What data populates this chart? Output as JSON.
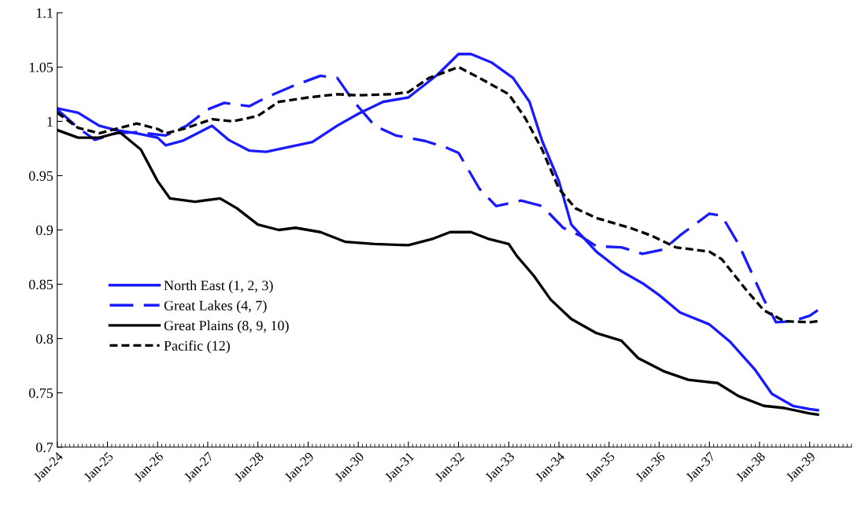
{
  "chart_data": {
    "type": "line",
    "xlim": [
      "1924-01",
      "1939-11"
    ],
    "xticks": [
      {
        "value": "1924-01",
        "label": "Jan-24"
      },
      {
        "value": "1925-01",
        "label": "Jan-25"
      },
      {
        "value": "1926-01",
        "label": "Jan-26"
      },
      {
        "value": "1927-01",
        "label": "Jan-27"
      },
      {
        "value": "1928-01",
        "label": "Jan-28"
      },
      {
        "value": "1929-01",
        "label": "Jan-29"
      },
      {
        "value": "1930-01",
        "label": "Jan-30"
      },
      {
        "value": "1931-01",
        "label": "Jan-31"
      },
      {
        "value": "1932-01",
        "label": "Jan-32"
      },
      {
        "value": "1933-01",
        "label": "Jan-33"
      },
      {
        "value": "1934-01",
        "label": "Jan-34"
      },
      {
        "value": "1935-01",
        "label": "Jan-35"
      },
      {
        "value": "1936-01",
        "label": "Jan-36"
      },
      {
        "value": "1937-01",
        "label": "Jan-37"
      },
      {
        "value": "1938-01",
        "label": "Jan-38"
      },
      {
        "value": "1939-01",
        "label": "Jan-39"
      }
    ],
    "ylim": [
      0.7,
      1.1
    ],
    "yticks": [
      0.7,
      0.75,
      0.8,
      0.85,
      0.9,
      0.95,
      1,
      1.05,
      1.1
    ],
    "grid": false,
    "legend": "left",
    "marker": "none",
    "series": [
      {
        "name": "North East (1, 2, 3)",
        "color": "#1a1aff",
        "line_style": "solid",
        "x": [
          "1924-01",
          "1924-06",
          "1924-11",
          "1925-03",
          "1925-08",
          "1926-01",
          "1926-03",
          "1926-07",
          "1927-02",
          "1927-06",
          "1927-11",
          "1928-03",
          "1929-02",
          "1929-08",
          "1930-01",
          "1930-07",
          "1931-01",
          "1931-08",
          "1932-01",
          "1932-04",
          "1932-09",
          "1933-02",
          "1933-06",
          "1933-09",
          "1934-01",
          "1934-04",
          "1934-10",
          "1935-04",
          "1935-09",
          "1936-01",
          "1936-06",
          "1937-01",
          "1937-06",
          "1937-12",
          "1938-04",
          "1938-09",
          "1939-01",
          "1939-03"
        ],
        "values": [
          1.012,
          1.008,
          0.996,
          0.992,
          0.989,
          0.985,
          0.978,
          0.982,
          0.996,
          0.983,
          0.973,
          0.972,
          0.981,
          0.996,
          1.007,
          1.018,
          1.022,
          1.043,
          1.062,
          1.062,
          1.054,
          1.04,
          1.018,
          0.982,
          0.945,
          0.905,
          0.88,
          0.862,
          0.851,
          0.84,
          0.824,
          0.813,
          0.797,
          0.771,
          0.749,
          0.738,
          0.735,
          0.734
        ]
      },
      {
        "name": "Great Lakes (4, 7)",
        "color": "#1a1aff",
        "line_style": "dashed",
        "x": [
          "1924-01",
          "1924-06",
          "1924-10",
          "1925-03",
          "1925-08",
          "1926-03",
          "1926-08",
          "1927-01",
          "1927-05",
          "1927-11",
          "1928-03",
          "1928-09",
          "1929-04",
          "1929-08",
          "1929-12",
          "1930-05",
          "1930-10",
          "1931-05",
          "1931-10",
          "1932-01",
          "1932-06",
          "1932-10",
          "1933-04",
          "1933-09",
          "1934-02",
          "1934-06",
          "1934-10",
          "1935-04",
          "1935-09",
          "1936-02",
          "1936-06",
          "1937-01",
          "1937-04",
          "1937-08",
          "1938-02",
          "1938-05",
          "1938-09",
          "1939-01",
          "1939-03"
        ],
        "values": [
          1.011,
          0.994,
          0.983,
          0.989,
          0.99,
          0.987,
          0.996,
          1.011,
          1.017,
          1.014,
          1.022,
          1.032,
          1.042,
          1.04,
          1.018,
          0.996,
          0.987,
          0.982,
          0.976,
          0.971,
          0.938,
          0.922,
          0.927,
          0.922,
          0.902,
          0.895,
          0.885,
          0.884,
          0.878,
          0.882,
          0.895,
          0.915,
          0.913,
          0.887,
          0.836,
          0.815,
          0.816,
          0.821,
          0.826
        ]
      },
      {
        "name": "Great Plains (8, 9, 10)",
        "color": "#000000",
        "line_style": "solid",
        "x": [
          "1924-01",
          "1924-06",
          "1924-11",
          "1925-04",
          "1925-09",
          "1926-01",
          "1926-04",
          "1926-10",
          "1927-04",
          "1927-08",
          "1928-01",
          "1928-06",
          "1928-10",
          "1929-04",
          "1929-10",
          "1930-05",
          "1931-01",
          "1931-07",
          "1931-11",
          "1932-04",
          "1932-08",
          "1933-01",
          "1933-03",
          "1933-07",
          "1933-11",
          "1934-04",
          "1934-10",
          "1935-04",
          "1935-08",
          "1936-02",
          "1936-08",
          "1937-03",
          "1937-08",
          "1938-02",
          "1938-07",
          "1939-01",
          "1939-03"
        ],
        "values": [
          0.992,
          0.985,
          0.985,
          0.99,
          0.974,
          0.945,
          0.929,
          0.926,
          0.929,
          0.92,
          0.905,
          0.9,
          0.902,
          0.898,
          0.889,
          0.887,
          0.886,
          0.892,
          0.898,
          0.898,
          0.892,
          0.887,
          0.876,
          0.858,
          0.836,
          0.818,
          0.805,
          0.798,
          0.782,
          0.77,
          0.762,
          0.759,
          0.747,
          0.738,
          0.736,
          0.731,
          0.73
        ]
      },
      {
        "name": "Pacific (12)",
        "color": "#000000",
        "line_style": "dotted",
        "x": [
          "1924-01",
          "1924-06",
          "1924-11",
          "1925-05",
          "1925-08",
          "1926-01",
          "1926-03",
          "1926-08",
          "1927-02",
          "1927-07",
          "1928-01",
          "1928-06",
          "1929-01",
          "1929-08",
          "1930-01",
          "1930-09",
          "1931-01",
          "1931-06",
          "1932-01",
          "1932-06",
          "1933-01",
          "1933-05",
          "1933-09",
          "1934-01",
          "1934-05",
          "1934-10",
          "1935-06",
          "1935-11",
          "1936-05",
          "1937-01",
          "1937-04",
          "1937-10",
          "1938-02",
          "1938-07",
          "1939-01",
          "1939-03"
        ],
        "values": [
          1.008,
          0.994,
          0.989,
          0.995,
          0.998,
          0.993,
          0.989,
          0.994,
          1.002,
          1.0,
          1.005,
          1.018,
          1.022,
          1.025,
          1.024,
          1.025,
          1.027,
          1.04,
          1.05,
          1.04,
          1.025,
          1.003,
          0.974,
          0.938,
          0.92,
          0.911,
          0.902,
          0.895,
          0.884,
          0.88,
          0.873,
          0.844,
          0.826,
          0.816,
          0.815,
          0.816
        ]
      }
    ]
  }
}
